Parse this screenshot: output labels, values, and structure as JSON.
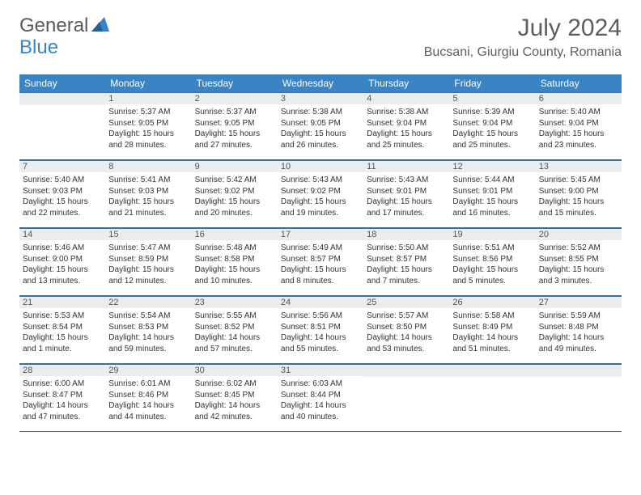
{
  "brand": {
    "general": "General",
    "blue": "Blue"
  },
  "title": "July 2024",
  "location": "Bucsani, Giurgiu County, Romania",
  "colors": {
    "header_bg": "#3a84c4",
    "border": "#3a6fa0",
    "daynum_bg": "#ececec",
    "text_dark": "#333333",
    "text_gray": "#5d5d5d"
  },
  "daysOfWeek": [
    "Sunday",
    "Monday",
    "Tuesday",
    "Wednesday",
    "Thursday",
    "Friday",
    "Saturday"
  ],
  "startOffset": 1,
  "days": [
    {
      "n": 1,
      "sr": "5:37 AM",
      "ss": "9:05 PM",
      "dl": "15 hours and 28 minutes."
    },
    {
      "n": 2,
      "sr": "5:37 AM",
      "ss": "9:05 PM",
      "dl": "15 hours and 27 minutes."
    },
    {
      "n": 3,
      "sr": "5:38 AM",
      "ss": "9:05 PM",
      "dl": "15 hours and 26 minutes."
    },
    {
      "n": 4,
      "sr": "5:38 AM",
      "ss": "9:04 PM",
      "dl": "15 hours and 25 minutes."
    },
    {
      "n": 5,
      "sr": "5:39 AM",
      "ss": "9:04 PM",
      "dl": "15 hours and 25 minutes."
    },
    {
      "n": 6,
      "sr": "5:40 AM",
      "ss": "9:04 PM",
      "dl": "15 hours and 23 minutes."
    },
    {
      "n": 7,
      "sr": "5:40 AM",
      "ss": "9:03 PM",
      "dl": "15 hours and 22 minutes."
    },
    {
      "n": 8,
      "sr": "5:41 AM",
      "ss": "9:03 PM",
      "dl": "15 hours and 21 minutes."
    },
    {
      "n": 9,
      "sr": "5:42 AM",
      "ss": "9:02 PM",
      "dl": "15 hours and 20 minutes."
    },
    {
      "n": 10,
      "sr": "5:43 AM",
      "ss": "9:02 PM",
      "dl": "15 hours and 19 minutes."
    },
    {
      "n": 11,
      "sr": "5:43 AM",
      "ss": "9:01 PM",
      "dl": "15 hours and 17 minutes."
    },
    {
      "n": 12,
      "sr": "5:44 AM",
      "ss": "9:01 PM",
      "dl": "15 hours and 16 minutes."
    },
    {
      "n": 13,
      "sr": "5:45 AM",
      "ss": "9:00 PM",
      "dl": "15 hours and 15 minutes."
    },
    {
      "n": 14,
      "sr": "5:46 AM",
      "ss": "9:00 PM",
      "dl": "15 hours and 13 minutes."
    },
    {
      "n": 15,
      "sr": "5:47 AM",
      "ss": "8:59 PM",
      "dl": "15 hours and 12 minutes."
    },
    {
      "n": 16,
      "sr": "5:48 AM",
      "ss": "8:58 PM",
      "dl": "15 hours and 10 minutes."
    },
    {
      "n": 17,
      "sr": "5:49 AM",
      "ss": "8:57 PM",
      "dl": "15 hours and 8 minutes."
    },
    {
      "n": 18,
      "sr": "5:50 AM",
      "ss": "8:57 PM",
      "dl": "15 hours and 7 minutes."
    },
    {
      "n": 19,
      "sr": "5:51 AM",
      "ss": "8:56 PM",
      "dl": "15 hours and 5 minutes."
    },
    {
      "n": 20,
      "sr": "5:52 AM",
      "ss": "8:55 PM",
      "dl": "15 hours and 3 minutes."
    },
    {
      "n": 21,
      "sr": "5:53 AM",
      "ss": "8:54 PM",
      "dl": "15 hours and 1 minute."
    },
    {
      "n": 22,
      "sr": "5:54 AM",
      "ss": "8:53 PM",
      "dl": "14 hours and 59 minutes."
    },
    {
      "n": 23,
      "sr": "5:55 AM",
      "ss": "8:52 PM",
      "dl": "14 hours and 57 minutes."
    },
    {
      "n": 24,
      "sr": "5:56 AM",
      "ss": "8:51 PM",
      "dl": "14 hours and 55 minutes."
    },
    {
      "n": 25,
      "sr": "5:57 AM",
      "ss": "8:50 PM",
      "dl": "14 hours and 53 minutes."
    },
    {
      "n": 26,
      "sr": "5:58 AM",
      "ss": "8:49 PM",
      "dl": "14 hours and 51 minutes."
    },
    {
      "n": 27,
      "sr": "5:59 AM",
      "ss": "8:48 PM",
      "dl": "14 hours and 49 minutes."
    },
    {
      "n": 28,
      "sr": "6:00 AM",
      "ss": "8:47 PM",
      "dl": "14 hours and 47 minutes."
    },
    {
      "n": 29,
      "sr": "6:01 AM",
      "ss": "8:46 PM",
      "dl": "14 hours and 44 minutes."
    },
    {
      "n": 30,
      "sr": "6:02 AM",
      "ss": "8:45 PM",
      "dl": "14 hours and 42 minutes."
    },
    {
      "n": 31,
      "sr": "6:03 AM",
      "ss": "8:44 PM",
      "dl": "14 hours and 40 minutes."
    }
  ],
  "labels": {
    "sunrise": "Sunrise:",
    "sunset": "Sunset:",
    "daylight": "Daylight:"
  }
}
